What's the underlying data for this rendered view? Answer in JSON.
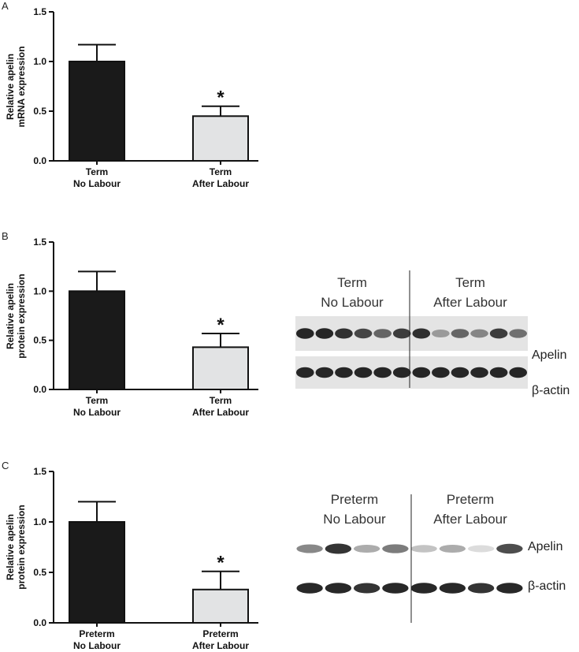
{
  "chart_data": [
    {
      "type": "bar",
      "panel": "A",
      "ylabel": "Relative apelin\nmRNA expression",
      "categories": [
        "Term\nNo Labour",
        "Term\nAfter Labour"
      ],
      "values": [
        1.0,
        0.45
      ],
      "errors": [
        0.17,
        0.1
      ],
      "colors": [
        "#1a1a1a",
        "#e2e3e4"
      ],
      "annotation": "*",
      "ylim": [
        0,
        1.5
      ],
      "yticks": [
        {
          "value": 0,
          "label": "0.0"
        },
        0.5,
        {
          "value": 1,
          "label": "1.0"
        },
        1.5
      ]
    },
    {
      "type": "bar",
      "panel": "B",
      "ylabel": "Relative apelin\nprotein expression",
      "categories": [
        "Term\nNo Labour",
        "Term\nAfter Labour"
      ],
      "values": [
        1.0,
        0.43
      ],
      "errors": [
        0.2,
        0.14
      ],
      "colors": [
        "#1a1a1a",
        "#e2e3e4"
      ],
      "annotation": "*",
      "ylim": [
        0,
        1.5
      ],
      "yticks": [
        {
          "value": 0,
          "label": "0.0"
        },
        0.5,
        {
          "value": 1,
          "label": "1.0"
        },
        1.5
      ]
    },
    {
      "type": "bar",
      "panel": "C",
      "ylabel": "Relative apelin\nprotein expression",
      "categories": [
        "Preterm\nNo Labour",
        "Preterm\nAfter Labour"
      ],
      "values": [
        1.0,
        0.33
      ],
      "errors": [
        0.2,
        0.18
      ],
      "colors": [
        "#1a1a1a",
        "#e2e3e4"
      ],
      "annotation": "*",
      "ylim": [
        0,
        1.5
      ],
      "yticks": [
        {
          "value": 0,
          "label": "0.0"
        },
        0.5,
        {
          "value": 1,
          "label": "1.0"
        },
        1.5
      ]
    }
  ],
  "blots": [
    {
      "groups": [
        "Term\nNo Labour",
        "Term\nAfter Labour"
      ],
      "rows": [
        "Apelin",
        "β-actin"
      ]
    },
    {
      "groups": [
        "Preterm\nNo Labour",
        "Preterm\nAfter Labour"
      ],
      "rows": [
        "Apelin",
        "β-actin"
      ]
    }
  ]
}
